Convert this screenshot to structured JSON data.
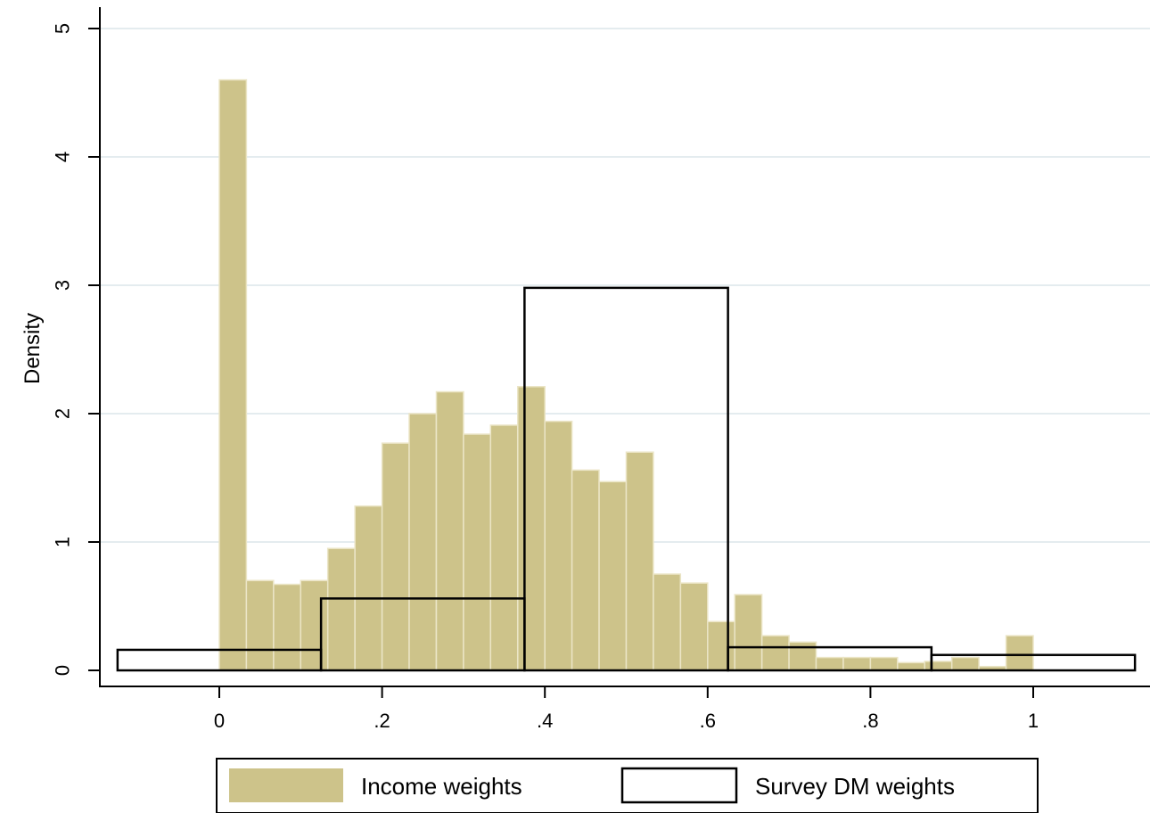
{
  "chart_data": {
    "type": "bar",
    "title": "",
    "xlabel": "",
    "ylabel": "Density",
    "xlim": [
      -0.14,
      1.14
    ],
    "ylim": [
      0,
      5.2
    ],
    "grid": true,
    "legend_position": "bottom",
    "x_ticks": [
      {
        "value": 0,
        "label": "0"
      },
      {
        "value": 0.2,
        "label": ".2"
      },
      {
        "value": 0.4,
        "label": ".4"
      },
      {
        "value": 0.6,
        "label": ".6"
      },
      {
        "value": 0.8,
        "label": ".8"
      },
      {
        "value": 1,
        "label": "1"
      }
    ],
    "y_ticks": [
      {
        "value": 0,
        "label": "0"
      },
      {
        "value": 1,
        "label": "1"
      },
      {
        "value": 2,
        "label": "2"
      },
      {
        "value": 3,
        "label": "3"
      },
      {
        "value": 4,
        "label": "4"
      },
      {
        "value": 5,
        "label": "5"
      }
    ],
    "series": [
      {
        "name": "Income weights",
        "style": "filled",
        "color": "#cdc38a",
        "bin_width": 0.0333,
        "bins": [
          {
            "x0": 0.0,
            "value": 4.6
          },
          {
            "x0": 0.0333,
            "value": 0.7
          },
          {
            "x0": 0.0667,
            "value": 0.67
          },
          {
            "x0": 0.1,
            "value": 0.7
          },
          {
            "x0": 0.1333,
            "value": 0.95
          },
          {
            "x0": 0.1667,
            "value": 1.28
          },
          {
            "x0": 0.2,
            "value": 1.77
          },
          {
            "x0": 0.2333,
            "value": 2.0
          },
          {
            "x0": 0.2667,
            "value": 2.17
          },
          {
            "x0": 0.3,
            "value": 1.84
          },
          {
            "x0": 0.3333,
            "value": 1.91
          },
          {
            "x0": 0.3667,
            "value": 2.21
          },
          {
            "x0": 0.4,
            "value": 1.94
          },
          {
            "x0": 0.4333,
            "value": 1.56
          },
          {
            "x0": 0.4667,
            "value": 1.47
          },
          {
            "x0": 0.5,
            "value": 1.7
          },
          {
            "x0": 0.5333,
            "value": 0.75
          },
          {
            "x0": 0.5667,
            "value": 0.68
          },
          {
            "x0": 0.6,
            "value": 0.38
          },
          {
            "x0": 0.6333,
            "value": 0.59
          },
          {
            "x0": 0.6667,
            "value": 0.27
          },
          {
            "x0": 0.7,
            "value": 0.22
          },
          {
            "x0": 0.7333,
            "value": 0.1
          },
          {
            "x0": 0.7667,
            "value": 0.1
          },
          {
            "x0": 0.8,
            "value": 0.1
          },
          {
            "x0": 0.8333,
            "value": 0.06
          },
          {
            "x0": 0.8667,
            "value": 0.07
          },
          {
            "x0": 0.9,
            "value": 0.1
          },
          {
            "x0": 0.9333,
            "value": 0.03
          },
          {
            "x0": 0.9667,
            "value": 0.27
          }
        ]
      },
      {
        "name": "Survey DM weights",
        "style": "outline",
        "color": "#000000",
        "bin_width": 0.25,
        "bins": [
          {
            "x0": -0.125,
            "value": 0.16
          },
          {
            "x0": 0.125,
            "value": 0.56
          },
          {
            "x0": 0.375,
            "value": 2.98
          },
          {
            "x0": 0.625,
            "value": 0.18
          },
          {
            "x0": 0.875,
            "value": 0.12
          }
        ]
      }
    ]
  }
}
